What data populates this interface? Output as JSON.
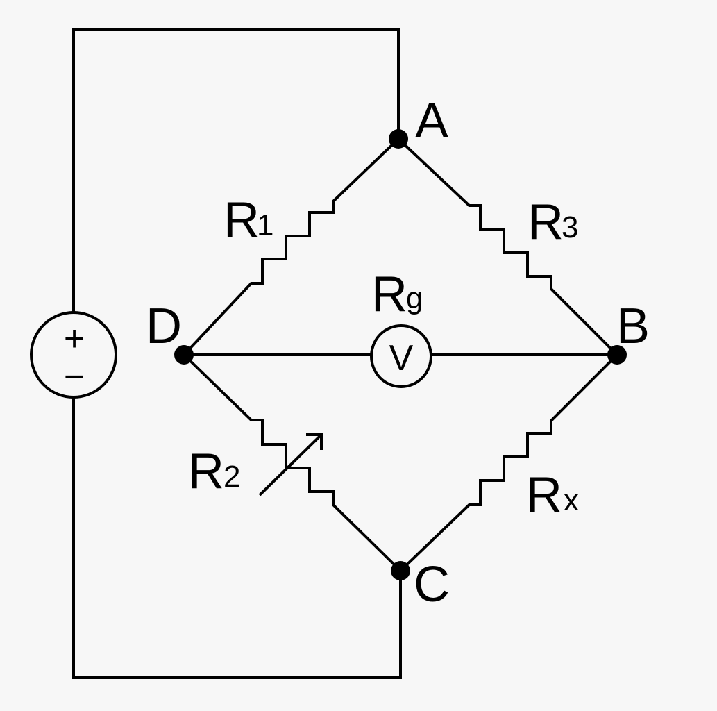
{
  "diagram": {
    "nodes": {
      "A": {
        "label": "A"
      },
      "B": {
        "label": "B"
      },
      "C": {
        "label": "C"
      },
      "D": {
        "label": "D"
      }
    },
    "resistors": {
      "r1": {
        "main": "R",
        "sub": "1"
      },
      "r2": {
        "main": "R",
        "sub": "2"
      },
      "r3": {
        "main": "R",
        "sub": "3"
      },
      "rx": {
        "main": "R",
        "sub": "x"
      },
      "rg": {
        "main": "R",
        "sub": "g"
      }
    },
    "voltmeter": {
      "symbol": "V"
    },
    "source": {
      "plus": "+",
      "minus": "−"
    }
  }
}
